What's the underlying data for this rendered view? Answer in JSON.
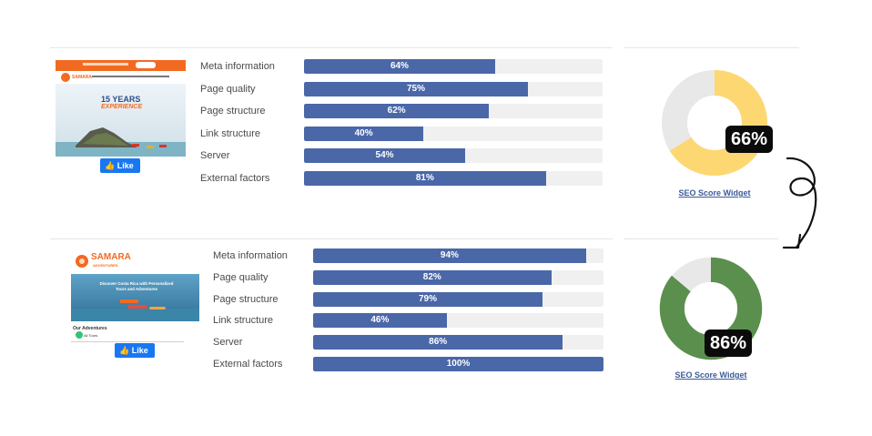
{
  "colors": {
    "bar_fill": "#4a67a8",
    "bar_track": "#f0f0f0",
    "donut_before": "#fdd772",
    "donut_after": "#5b8f4d",
    "donut_remainder": "#e8e8e8",
    "badge_bg": "#0b0b0b",
    "like_blue": "#1877f2",
    "link_blue": "#3b5b9a"
  },
  "before": {
    "thumbnail": {
      "headline": "15 YEARS",
      "subheadline": "EXPERIENCE",
      "logo_text": "SAMARA",
      "like_label": "Like",
      "like_icon": "thumbs-up-icon"
    },
    "metrics": [
      {
        "label": "Meta information",
        "value": 64,
        "display": "64%"
      },
      {
        "label": "Page quality",
        "value": 75,
        "display": "75%"
      },
      {
        "label": "Page structure",
        "value": 62,
        "display": "62%"
      },
      {
        "label": "Link structure",
        "value": 40,
        "display": "40%"
      },
      {
        "label": "Server",
        "value": 54,
        "display": "54%"
      },
      {
        "label": "External factors",
        "value": 81,
        "display": "81%"
      }
    ],
    "score": {
      "value": 66,
      "display": "66%",
      "link": "SEO Score Widget"
    }
  },
  "after": {
    "thumbnail": {
      "logo_text": "SAMARA",
      "logo_sub": "ADVENTURES",
      "hero_title": "Discover Costa Rica with Personalized Tours and Adventures",
      "section_title": "Our Adventures",
      "tab_label": "All Tours",
      "like_label": "Like",
      "like_icon": "thumbs-up-icon"
    },
    "metrics": [
      {
        "label": "Meta information",
        "value": 94,
        "display": "94%"
      },
      {
        "label": "Page quality",
        "value": 82,
        "display": "82%"
      },
      {
        "label": "Page structure",
        "value": 79,
        "display": "79%"
      },
      {
        "label": "Link structure",
        "value": 46,
        "display": "46%"
      },
      {
        "label": "Server",
        "value": 86,
        "display": "86%"
      },
      {
        "label": "External factors",
        "value": 100,
        "display": "100%"
      }
    ],
    "score": {
      "value": 86,
      "display": "86%",
      "link": "SEO Score Widget"
    }
  },
  "arrow_icon": "curly-arrow-icon"
}
